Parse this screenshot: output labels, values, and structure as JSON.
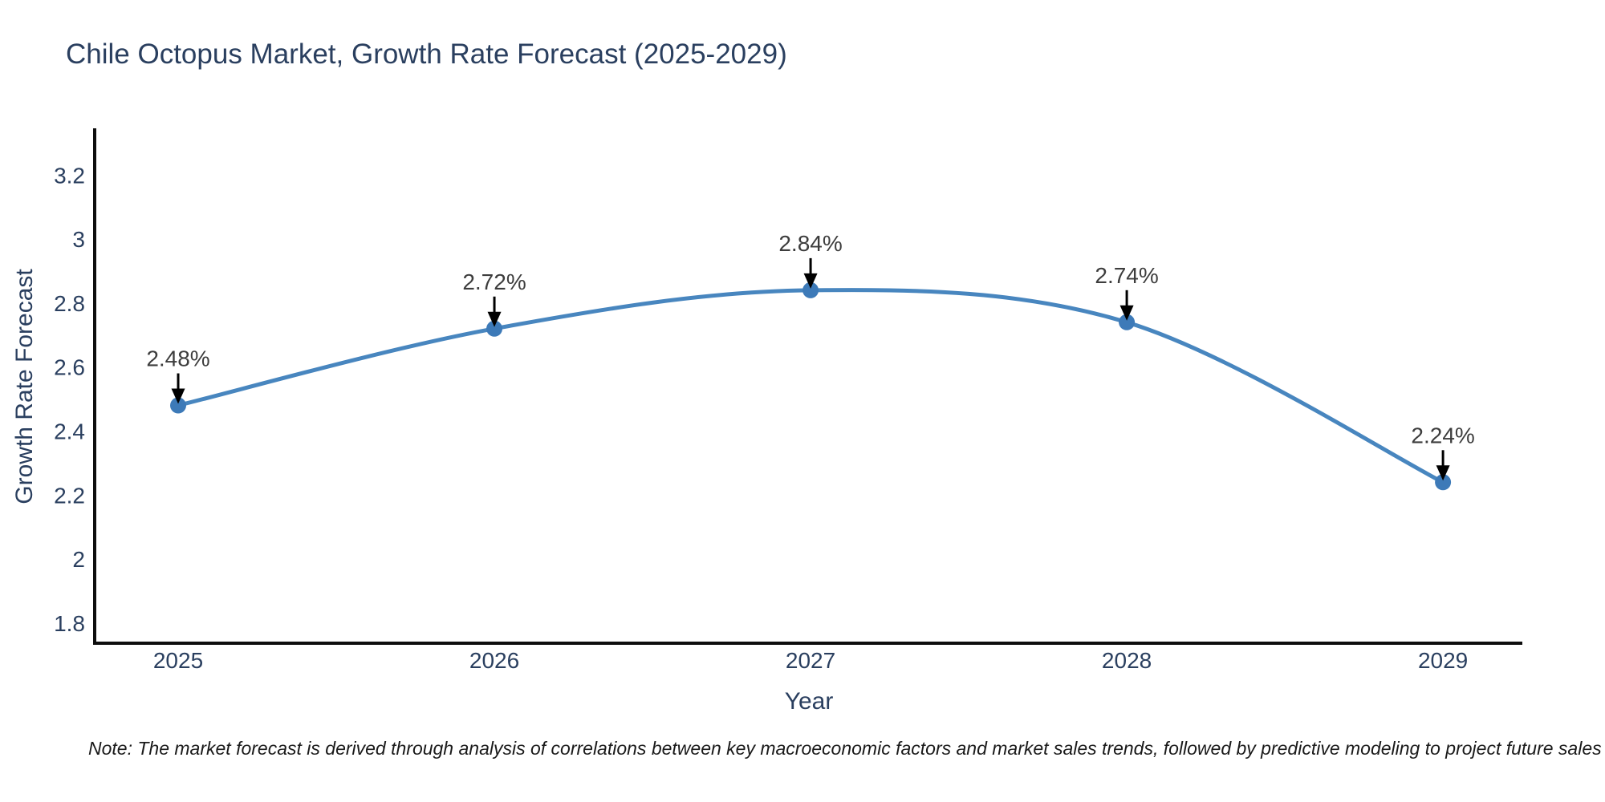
{
  "title": "Chile Octopus Market, Growth Rate Forecast (2025-2029)",
  "note": "Note: The market forecast is derived through analysis of correlations between key macroeconomic factors and market sales trends, followed by predictive modeling to project future sales",
  "chart_data": {
    "type": "line",
    "line_shape": "spline",
    "title": "Chile Octopus Market, Growth Rate Forecast (2025-2029)",
    "xlabel": "Year",
    "ylabel": "Growth Rate Forecast",
    "x": [
      2025,
      2026,
      2027,
      2028,
      2029
    ],
    "y": [
      2.48,
      2.72,
      2.84,
      2.74,
      2.24
    ],
    "point_labels": [
      "2.48%",
      "2.72%",
      "2.84%",
      "2.74%",
      "2.24%"
    ],
    "xticks": [
      "2025",
      "2026",
      "2027",
      "2028",
      "2029"
    ],
    "yticks": [
      "1.8",
      "2",
      "2.2",
      "2.4",
      "2.6",
      "2.8",
      "3",
      "3.2"
    ],
    "xlim": [
      2024.736,
      2029.251
    ],
    "ylim": [
      1.737,
      3.346
    ],
    "grid": false,
    "legend": "none",
    "marker": "circle",
    "annotation_arrows": true,
    "colors": {
      "line": "#4886bf",
      "marker": "#3d7ab8",
      "arrow": "#000000",
      "axis": "#0d0d0d",
      "title_text": "#2a3f5f",
      "tick_text": "#2a3f5f",
      "annotation_text": "#3d3d3d",
      "background": "#ffffff"
    }
  }
}
